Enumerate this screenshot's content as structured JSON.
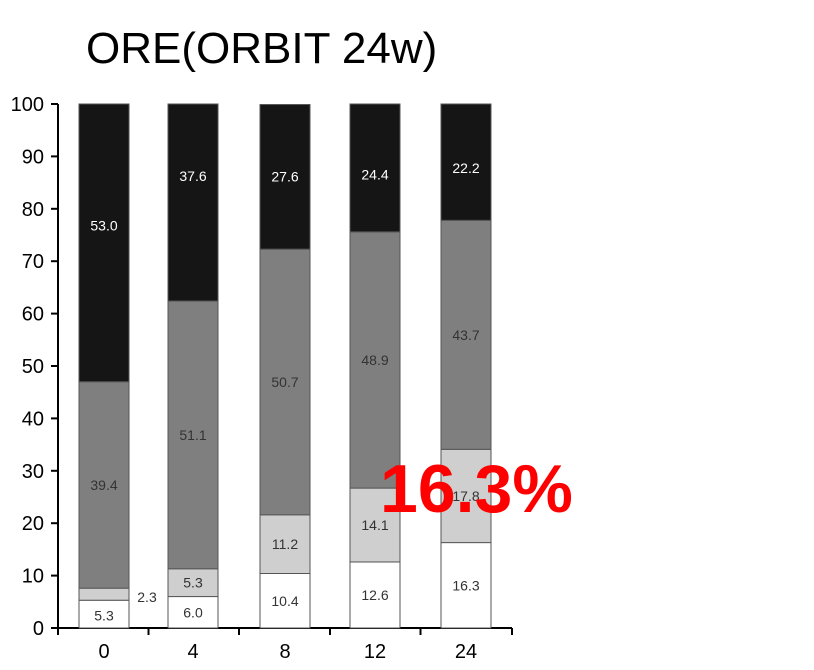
{
  "chart_data": {
    "type": "bar",
    "stacked": true,
    "title": "ORE(ORBIT 24w)",
    "xlabel": "",
    "ylabel": "",
    "ylim": [
      0,
      100
    ],
    "yticks": [
      0,
      10,
      20,
      30,
      40,
      50,
      60,
      70,
      80,
      90,
      100
    ],
    "categories": [
      "0",
      "4",
      "8",
      "12",
      "24"
    ],
    "series": [
      {
        "values": [
          5.3,
          6.0,
          10.4,
          12.6,
          16.3
        ],
        "color": "#ffffff",
        "label_color": "#333333"
      },
      {
        "values": [
          2.3,
          5.3,
          11.2,
          14.1,
          17.8
        ],
        "color": "#cfcfcf",
        "label_color": "#333333"
      },
      {
        "values": [
          39.4,
          51.1,
          50.7,
          48.9,
          43.7
        ],
        "color": "#7f7f7f",
        "label_color": "#333333"
      },
      {
        "values": [
          53.0,
          37.6,
          27.6,
          24.4,
          22.2
        ],
        "color": "#151515",
        "label_color": "#ffffff"
      }
    ],
    "annotations": [
      {
        "text": "16.3%",
        "color": "#ff0000"
      }
    ]
  }
}
